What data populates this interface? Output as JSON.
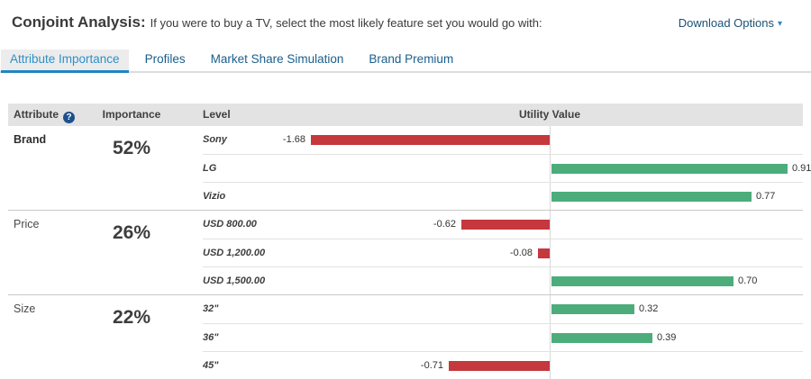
{
  "header": {
    "title": "Conjoint Analysis:",
    "subtitle": "If you were to buy a TV, select the most likely feature set you would go with:",
    "download_label": "Download Options",
    "caret_icon": "▾"
  },
  "tabs": [
    {
      "label": "Attribute Importance",
      "active": true
    },
    {
      "label": "Profiles",
      "active": false
    },
    {
      "label": "Market Share Simulation",
      "active": false
    },
    {
      "label": "Brand Premium",
      "active": false
    }
  ],
  "table": {
    "columns": {
      "attribute": "Attribute",
      "importance": "Importance",
      "level": "Level",
      "utility": "Utility Value"
    },
    "help_icon": "?"
  },
  "colors": {
    "positive_bar": "#4cad7b",
    "negative_bar": "#c5383d",
    "accent_blue": "#2183c5",
    "axis_line": "#d8d8d8"
  },
  "chart_data": {
    "type": "bar",
    "orientation": "horizontal",
    "value_axis_label": "Utility Value",
    "sections": [
      {
        "attribute": "Brand",
        "importance": "52%",
        "emphasis": true,
        "levels": [
          {
            "label": "Sony",
            "value": -1.68,
            "display": "-1.68"
          },
          {
            "label": "LG",
            "value": 0.91,
            "display": "0.91"
          },
          {
            "label": "Vizio",
            "value": 0.77,
            "display": "0.77"
          }
        ]
      },
      {
        "attribute": "Price",
        "importance": "26%",
        "emphasis": false,
        "levels": [
          {
            "label": "USD 800.00",
            "value": -0.62,
            "display": "-0.62"
          },
          {
            "label": "USD 1,200.00",
            "value": -0.08,
            "display": "-0.08"
          },
          {
            "label": "USD 1,500.00",
            "value": 0.7,
            "display": "0.70"
          }
        ]
      },
      {
        "attribute": "Size",
        "importance": "22%",
        "emphasis": false,
        "levels": [
          {
            "label": "32\"",
            "value": 0.32,
            "display": "0.32"
          },
          {
            "label": "36\"",
            "value": 0.39,
            "display": "0.39"
          },
          {
            "label": "45\"",
            "value": -0.71,
            "display": "-0.71"
          }
        ]
      }
    ]
  }
}
